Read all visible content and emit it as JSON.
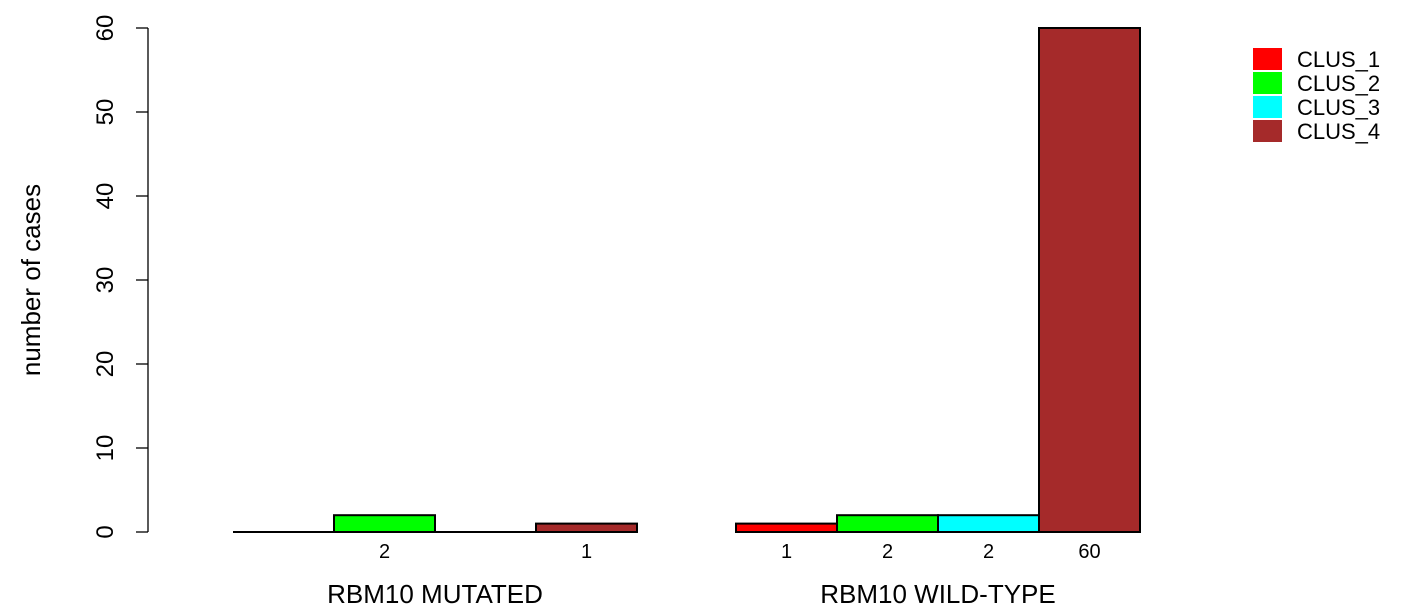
{
  "chart_data": {
    "type": "bar",
    "title": "",
    "xlabel": "",
    "ylabel": "number of cases",
    "ylim": [
      0,
      60
    ],
    "yticks": [
      0,
      10,
      20,
      30,
      40,
      50,
      60
    ],
    "grid": false,
    "legend_position": "top-right",
    "categories": [
      "RBM10 MUTATED",
      "RBM10 WILD-TYPE"
    ],
    "series": [
      {
        "name": "CLUS_1",
        "color": "#ff0000",
        "values": [
          0,
          1
        ]
      },
      {
        "name": "CLUS_2",
        "color": "#00ff00",
        "values": [
          2,
          2
        ]
      },
      {
        "name": "CLUS_3",
        "color": "#00ffff",
        "values": [
          0,
          2
        ]
      },
      {
        "name": "CLUS_4",
        "color": "#a52a2a",
        "values": [
          1,
          60
        ]
      }
    ],
    "count_labels": [
      [
        "",
        "2",
        "",
        "1"
      ],
      [
        "1",
        "2",
        "2",
        "60"
      ]
    ]
  }
}
